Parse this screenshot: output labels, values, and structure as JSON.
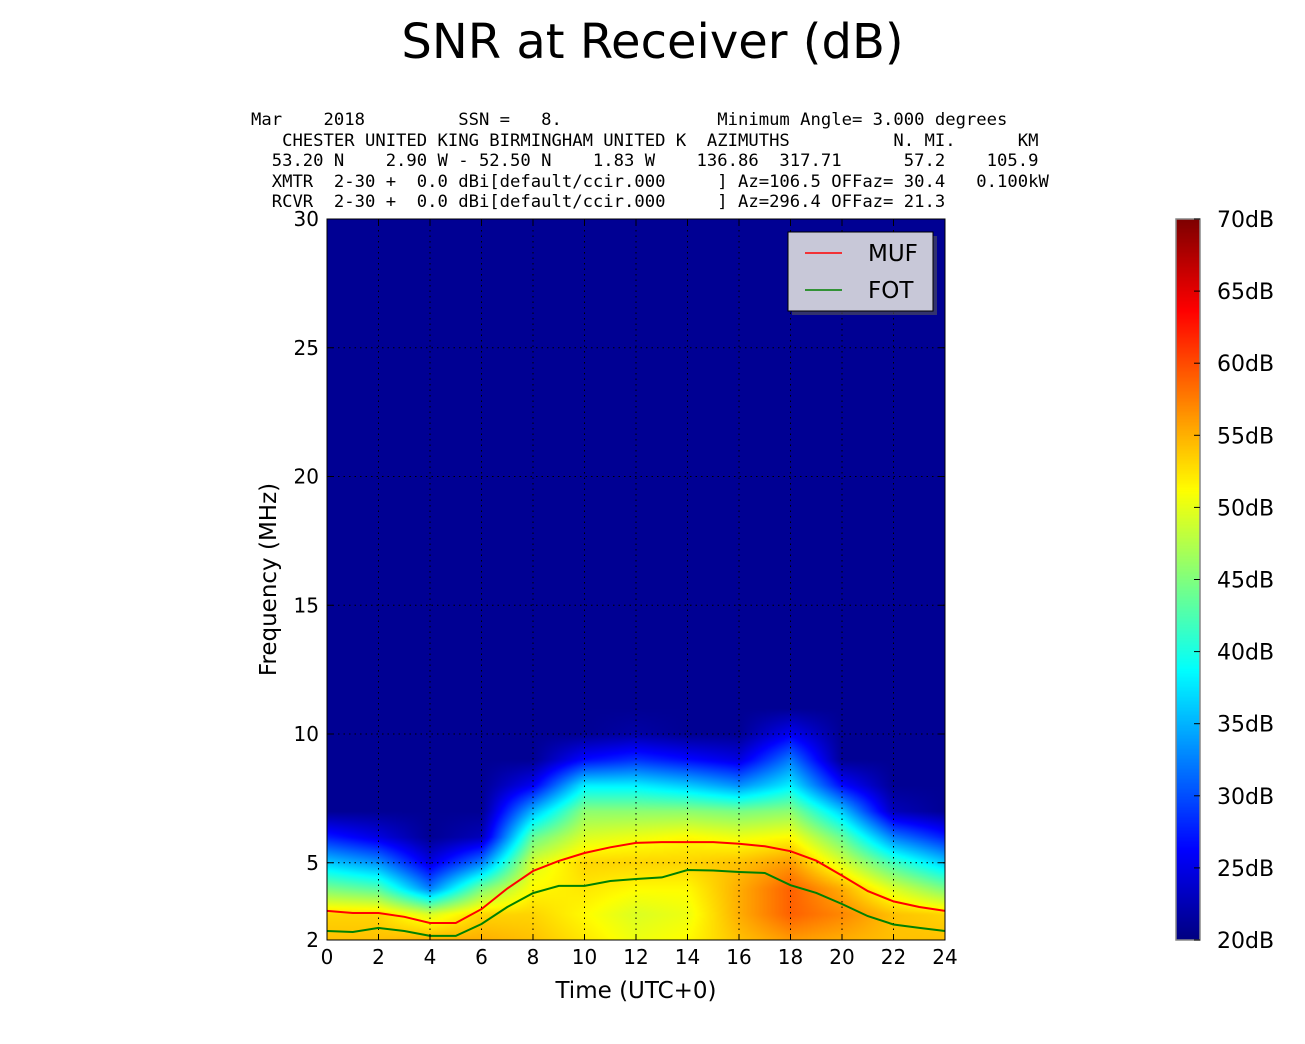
{
  "chart_data": {
    "type": "heatmap",
    "title": "SNR at Receiver (dB)",
    "header_lines": [
      "Mar    2018         SSN =   8.               Minimum Angle= 3.000 degrees",
      "   CHESTER UNITED KING BIRMINGHAM UNITED K  AZIMUTHS          N. MI.      KM",
      "  53.20 N    2.90 W - 52.50 N    1.83 W    136.86  317.71      57.2    105.9",
      "  XMTR  2-30 +  0.0 dBi[default/ccir.000     ] Az=106.5 OFFaz= 30.4   0.100kW",
      "  RCVR  2-30 +  0.0 dBi[default/ccir.000     ] Az=296.4 OFFaz= 21.3"
    ],
    "xlabel": "Time (UTC+0)",
    "ylabel": "Frequency (MHz)",
    "xlim": [
      0,
      24
    ],
    "ylim": [
      2,
      30
    ],
    "xticks": [
      0,
      2,
      4,
      6,
      8,
      10,
      12,
      14,
      16,
      18,
      20,
      22,
      24
    ],
    "yticks": [
      2,
      5,
      10,
      15,
      20,
      25,
      30
    ],
    "grid": true,
    "legend_position": "top-right",
    "colorbar": {
      "range": [
        20,
        70
      ],
      "ticks": [
        "20dB",
        "25dB",
        "30dB",
        "35dB",
        "40dB",
        "45dB",
        "50dB",
        "55dB",
        "60dB",
        "65dB",
        "70dB"
      ]
    },
    "snr_grid": {
      "hours": [
        0,
        2,
        4,
        6,
        8,
        10,
        12,
        14,
        16,
        18,
        20,
        22,
        24
      ],
      "freqs": [
        2,
        3,
        4,
        5,
        6,
        7,
        8,
        9,
        10,
        11,
        30
      ],
      "values": [
        [
          55,
          55,
          56,
          56,
          55,
          53,
          51,
          52,
          55,
          57,
          56,
          55,
          55
        ],
        [
          54,
          54,
          50,
          54,
          54,
          52,
          50,
          51,
          56,
          60,
          58,
          55,
          54
        ],
        [
          45,
          43,
          32,
          45,
          52,
          53,
          52,
          52,
          56,
          60,
          56,
          50,
          45
        ],
        [
          36,
          33,
          24,
          32,
          50,
          54,
          54,
          54,
          55,
          57,
          50,
          42,
          36
        ],
        [
          27,
          24,
          20,
          22,
          44,
          50,
          51,
          52,
          51,
          52,
          44,
          32,
          27
        ],
        [
          20,
          20,
          20,
          20,
          35,
          46,
          46,
          46,
          45,
          46,
          36,
          22,
          20
        ],
        [
          20,
          20,
          20,
          20,
          25,
          38,
          38,
          36,
          33,
          38,
          26,
          20,
          20
        ],
        [
          20,
          20,
          20,
          20,
          20,
          26,
          28,
          26,
          24,
          32,
          20,
          20,
          20
        ],
        [
          20,
          20,
          20,
          20,
          20,
          20,
          21,
          20,
          20,
          25,
          20,
          20,
          20
        ],
        [
          20,
          20,
          20,
          20,
          20,
          20,
          20,
          20,
          20,
          20,
          20,
          20,
          20
        ],
        [
          20,
          20,
          20,
          20,
          20,
          20,
          20,
          20,
          20,
          20,
          20,
          20,
          20
        ]
      ]
    },
    "series": [
      {
        "name": "MUF",
        "color": "#ff0000",
        "x": [
          0,
          1,
          2,
          3,
          4,
          5,
          6,
          7,
          8,
          9,
          10,
          11,
          12,
          13,
          14,
          15,
          16,
          17,
          18,
          19,
          20,
          21,
          22,
          23,
          24
        ],
        "y": [
          3.13,
          3.05,
          3.05,
          2.9,
          2.66,
          2.66,
          3.2,
          4.0,
          4.68,
          5.07,
          5.38,
          5.6,
          5.77,
          5.8,
          5.8,
          5.8,
          5.74,
          5.64,
          5.45,
          5.08,
          4.5,
          3.9,
          3.5,
          3.28,
          3.13
        ]
      },
      {
        "name": "FOT",
        "color": "#008000",
        "x": [
          0,
          1,
          2,
          3,
          4,
          5,
          6,
          7,
          8,
          9,
          10,
          11,
          12,
          13,
          14,
          15,
          16,
          17,
          18,
          19,
          20,
          21,
          22,
          23,
          24
        ],
        "y": [
          2.35,
          2.31,
          2.47,
          2.35,
          2.16,
          2.16,
          2.62,
          3.28,
          3.82,
          4.1,
          4.1,
          4.29,
          4.37,
          4.43,
          4.72,
          4.7,
          4.64,
          4.6,
          4.13,
          3.83,
          3.4,
          2.93,
          2.6,
          2.47,
          2.35
        ]
      }
    ]
  }
}
